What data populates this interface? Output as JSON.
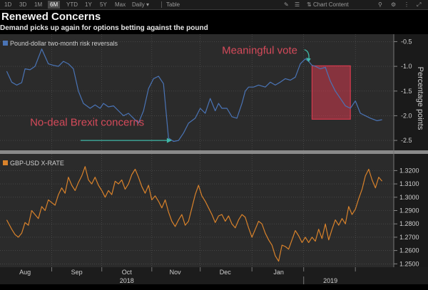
{
  "toolbar": {
    "timeframes": [
      "1D",
      "3D",
      "1M",
      "6M",
      "YTD",
      "1Y",
      "5Y",
      "Max"
    ],
    "active_timeframe": "6M",
    "period": "Daily",
    "table_label": "Table",
    "chart_content_label": "Chart Content"
  },
  "header": {
    "title": "Renewed Concerns",
    "subtitle": "Demand picks up again for options betting against the pound"
  },
  "chart_data": [
    {
      "type": "line",
      "legend": "Pound-dollar two-month risk reversals",
      "ylabel": "Percentage points",
      "ylim": [
        -2.7,
        -0.35
      ],
      "yticks": [
        -0.5,
        -1.0,
        -1.5,
        -2.0,
        -2.5
      ],
      "ytick_labels": [
        "-0.5",
        "-1.0",
        "-1.5",
        "-2.0",
        "-2.5"
      ],
      "color": "#4a74b6",
      "x": [
        0,
        3,
        6,
        9,
        11,
        14,
        17,
        21,
        25,
        28,
        31,
        34,
        37,
        40,
        43,
        46,
        50,
        53,
        56,
        58,
        61,
        64,
        67,
        70,
        73,
        76,
        79,
        82,
        85,
        88,
        91,
        94,
        97,
        100,
        103,
        106,
        109,
        113,
        116,
        119,
        122,
        125,
        127,
        129,
        132,
        135,
        138,
        141,
        143,
        145,
        148,
        151,
        155,
        158,
        161,
        164,
        167,
        170,
        173,
        176,
        179,
        181,
        183,
        185,
        188,
        191,
        194,
        197,
        200,
        203,
        206,
        209,
        212,
        215,
        218,
        222,
        225
      ],
      "y": [
        -1.1,
        -1.32,
        -1.38,
        -1.33,
        -1.05,
        -1.07,
        -1.0,
        -0.65,
        -0.95,
        -0.98,
        -1.0,
        -0.9,
        -0.95,
        -1.05,
        -1.5,
        -1.75,
        -1.85,
        -1.78,
        -1.85,
        -1.75,
        -1.82,
        -1.8,
        -1.9,
        -2.0,
        -1.95,
        -2.05,
        -2.15,
        -1.9,
        -1.45,
        -1.25,
        -1.2,
        -1.35,
        -2.45,
        -2.52,
        -2.5,
        -2.35,
        -2.15,
        -2.05,
        -1.85,
        -1.95,
        -1.65,
        -1.9,
        -1.75,
        -1.85,
        -1.85,
        -2.02,
        -2.05,
        -1.75,
        -1.5,
        -1.42,
        -1.42,
        -1.38,
        -1.42,
        -1.32,
        -1.38,
        -1.32,
        -1.25,
        -1.28,
        -1.22,
        -0.95,
        -0.85,
        -0.9,
        -0.98,
        -1.0,
        -1.05,
        -1.02,
        -1.3,
        -1.5,
        -1.65,
        -1.8,
        -1.85,
        -1.7,
        -1.95,
        -2.0,
        -2.05,
        -2.1,
        -2.08
      ],
      "annotations": [
        "Meaningful vote",
        "No-deal Brexit concerns"
      ]
    },
    {
      "type": "line",
      "legend": "GBP-USD X-RATE",
      "ylim": [
        1.2475,
        1.3325
      ],
      "yticks": [
        1.32,
        1.31,
        1.3,
        1.29,
        1.28,
        1.27,
        1.26,
        1.25
      ],
      "ytick_labels": [
        "1.3200",
        "1.3100",
        "1.3000",
        "1.2900",
        "1.2800",
        "1.2700",
        "1.2600",
        "1.2500"
      ],
      "color": "#d9822b",
      "x": [
        0,
        3,
        5,
        7,
        9,
        11,
        13,
        15,
        17,
        19,
        21,
        23,
        25,
        27,
        29,
        31,
        33,
        35,
        37,
        39,
        41,
        43,
        45,
        47,
        49,
        51,
        53,
        55,
        57,
        59,
        61,
        63,
        65,
        67,
        69,
        71,
        73,
        75,
        77,
        79,
        81,
        83,
        85,
        87,
        89,
        91,
        93,
        95,
        97,
        99,
        101,
        103,
        105,
        107,
        109,
        111,
        113,
        115,
        117,
        119,
        121,
        123,
        125,
        127,
        129,
        131,
        133,
        135,
        137,
        139,
        141,
        143,
        145,
        147,
        149,
        151,
        153,
        155,
        157,
        159,
        161,
        163,
        165,
        167,
        169,
        171,
        173,
        175,
        177,
        179,
        181,
        183,
        185,
        187,
        189,
        191,
        193,
        195,
        197,
        199,
        201,
        203,
        205,
        207,
        209,
        211,
        213,
        215,
        217,
        219,
        221,
        223,
        225
      ],
      "y": [
        1.283,
        1.276,
        1.272,
        1.27,
        1.273,
        1.281,
        1.279,
        1.29,
        1.287,
        1.284,
        1.293,
        1.29,
        1.298,
        1.296,
        1.294,
        1.302,
        1.307,
        1.303,
        1.315,
        1.309,
        1.305,
        1.311,
        1.316,
        1.323,
        1.313,
        1.31,
        1.315,
        1.309,
        1.305,
        1.3,
        1.305,
        1.302,
        1.312,
        1.31,
        1.313,
        1.306,
        1.31,
        1.317,
        1.321,
        1.315,
        1.308,
        1.303,
        1.309,
        1.298,
        1.301,
        1.297,
        1.292,
        1.298,
        1.289,
        1.282,
        1.278,
        1.283,
        1.287,
        1.279,
        1.282,
        1.292,
        1.302,
        1.309,
        1.301,
        1.297,
        1.292,
        1.287,
        1.281,
        1.286,
        1.287,
        1.282,
        1.286,
        1.28,
        1.277,
        1.283,
        1.287,
        1.285,
        1.277,
        1.27,
        1.276,
        1.282,
        1.28,
        1.273,
        1.268,
        1.264,
        1.256,
        1.252,
        1.264,
        1.263,
        1.261,
        1.268,
        1.275,
        1.271,
        1.266,
        1.27,
        1.266,
        1.27,
        1.267,
        1.276,
        1.269,
        1.28,
        1.268,
        1.276,
        1.283,
        1.279,
        1.284,
        1.28,
        1.293,
        1.287,
        1.291,
        1.299,
        1.306,
        1.316,
        1.321,
        1.313,
        1.307,
        1.315,
        1.312
      ]
    }
  ],
  "x_axis": {
    "months": [
      "Aug",
      "Sep",
      "Oct",
      "Nov",
      "Dec",
      "Jan"
    ],
    "years": [
      "2018",
      "2019"
    ],
    "x_domain": [
      -4,
      232
    ],
    "month_x": [
      -5,
      27,
      57,
      87,
      116,
      147,
      178,
      209
    ],
    "month_label_x": [
      11,
      42,
      72,
      101,
      131,
      163
    ],
    "year_x": [
      72,
      194
    ],
    "year_sep_x": [
      178
    ]
  },
  "annotation_data": {
    "meaningful_vote": {
      "label": "Meaningful vote",
      "label_x": 129,
      "label_y": -0.75,
      "arrow_to": [
        181,
        -0.9
      ]
    },
    "no_deal": {
      "label": "No-deal Brexit concerns",
      "label_x": 14,
      "label_y": -2.2,
      "arrow_to": [
        99,
        -2.5
      ]
    },
    "highlight_box": {
      "x0": 183,
      "x1": 206,
      "y0": -0.99,
      "y1": -2.07
    }
  },
  "colors": {
    "background": "#000000",
    "panel": "#2b2b2b",
    "grid": "#5a5a5a",
    "highlight": "#d43a4e",
    "annotation_text": "#d44a5a",
    "arrow": "#3fb8a8"
  }
}
